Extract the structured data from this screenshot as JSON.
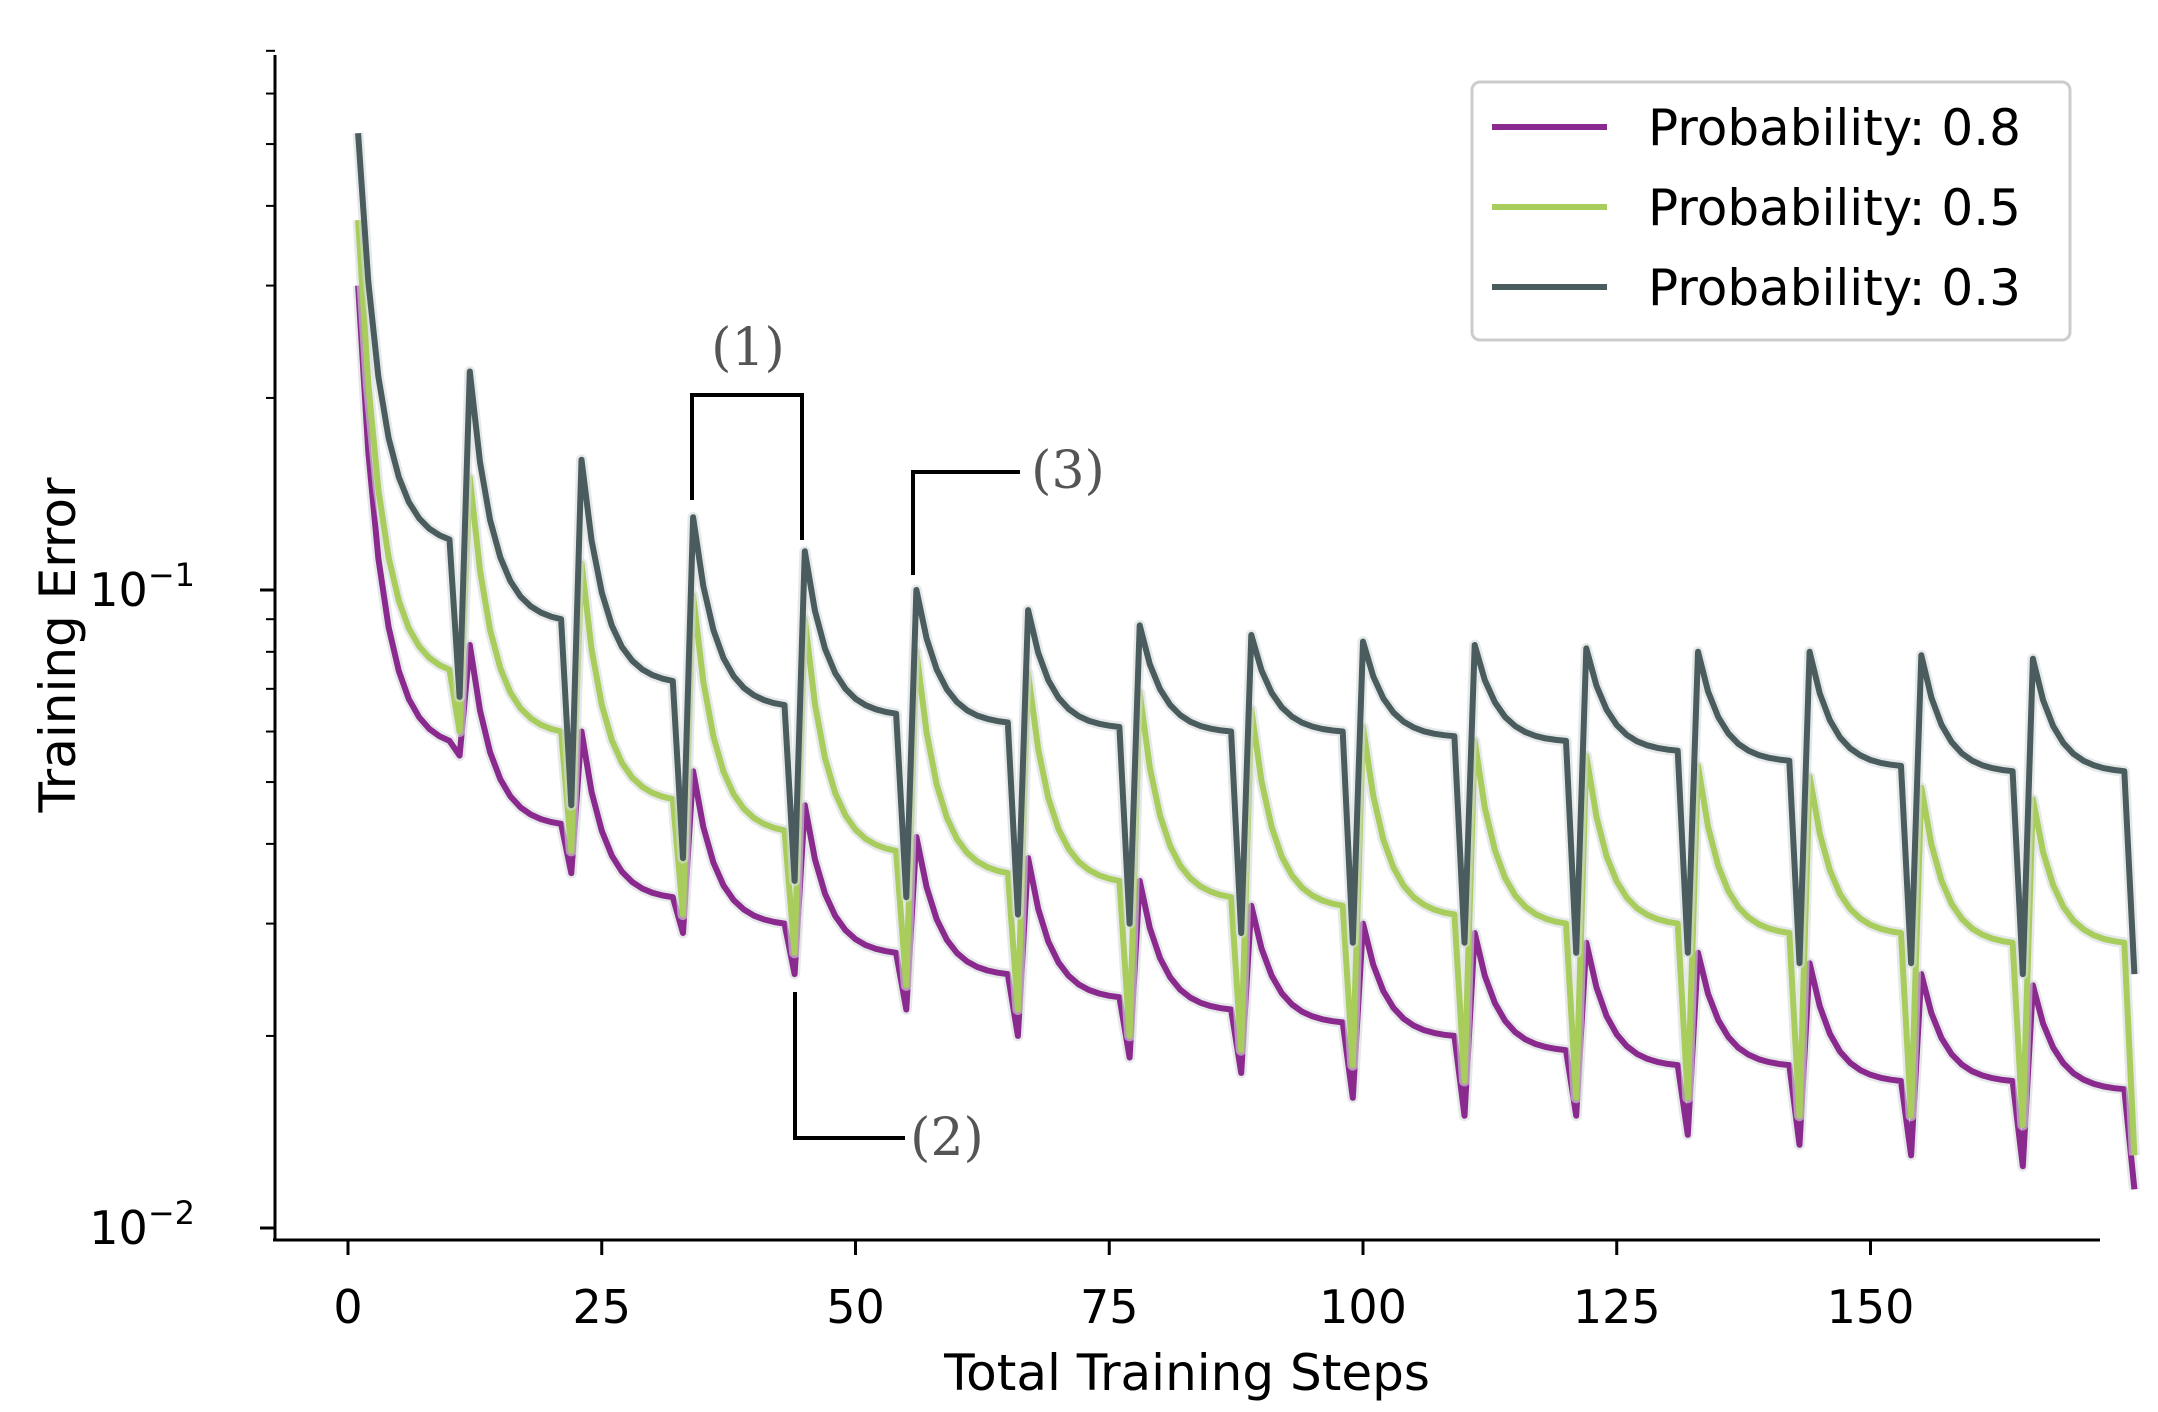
{
  "chart_data": {
    "type": "line",
    "title": "",
    "xlabel": "Total Training Steps",
    "ylabel": "Training Error",
    "yscale": "log",
    "xlim": [
      -3,
      173
    ],
    "ylim": [
      0.0095,
      0.75
    ],
    "xticks": [
      0,
      25,
      50,
      75,
      100,
      125,
      150
    ],
    "xtick_labels": [
      "0",
      "25",
      "50",
      "75",
      "100",
      "125",
      "150"
    ],
    "yticks": [
      0.1,
      0.01
    ],
    "ytick_labels": [
      {
        "base": "10",
        "exp": "−1"
      },
      {
        "base": "10",
        "exp": "−2"
      }
    ],
    "legend_position": "top-right",
    "series": [
      {
        "name": "Probability: 0.8",
        "color": "#8B2A8E",
        "start": 0.3,
        "pre_reset": 0.058,
        "reset_values": [
          0.082,
          0.06,
          0.052,
          0.046,
          0.041,
          0.038,
          0.035,
          0.032,
          0.03,
          0.029,
          0.028,
          0.027,
          0.026,
          0.025,
          0.024
        ],
        "end_values": [
          0.043,
          0.033,
          0.03,
          0.027,
          0.025,
          0.023,
          0.022,
          0.021,
          0.02,
          0.019,
          0.018,
          0.018,
          0.017,
          0.017,
          0.0165
        ],
        "dip_values": [
          0.055,
          0.036,
          0.029,
          0.025,
          0.022,
          0.02,
          0.0185,
          0.0175,
          0.016,
          0.015,
          0.015,
          0.014,
          0.0135,
          0.013,
          0.0125,
          0.0115
        ]
      },
      {
        "name": "Probability: 0.5",
        "color": "#A8CD5C",
        "start": 0.38,
        "pre_reset": 0.075,
        "reset_values": [
          0.15,
          0.11,
          0.098,
          0.09,
          0.08,
          0.074,
          0.069,
          0.065,
          0.061,
          0.058,
          0.055,
          0.053,
          0.051,
          0.049,
          0.047
        ],
        "end_values": [
          0.06,
          0.047,
          0.042,
          0.039,
          0.036,
          0.035,
          0.033,
          0.032,
          0.031,
          0.03,
          0.03,
          0.029,
          0.029,
          0.028,
          0.028
        ],
        "dip_values": [
          0.06,
          0.039,
          0.031,
          0.027,
          0.024,
          0.022,
          0.02,
          0.019,
          0.018,
          0.017,
          0.016,
          0.016,
          0.015,
          0.015,
          0.0145,
          0.013
        ]
      },
      {
        "name": "Probability: 0.3",
        "color": "#4A5C5D",
        "start": 0.52,
        "pre_reset": 0.12,
        "reset_values": [
          0.22,
          0.16,
          0.13,
          0.115,
          0.1,
          0.093,
          0.088,
          0.085,
          0.083,
          0.082,
          0.081,
          0.08,
          0.08,
          0.079,
          0.078
        ],
        "end_values": [
          0.09,
          0.072,
          0.066,
          0.064,
          0.062,
          0.061,
          0.06,
          0.06,
          0.059,
          0.058,
          0.056,
          0.054,
          0.053,
          0.052,
          0.052
        ],
        "dip_values": [
          0.068,
          0.046,
          0.038,
          0.035,
          0.033,
          0.031,
          0.03,
          0.029,
          0.028,
          0.028,
          0.027,
          0.027,
          0.026,
          0.026,
          0.025,
          0.025
        ]
      }
    ],
    "cycle_length": 11,
    "annotations": [
      {
        "label": "(1)",
        "description": "bracket between consecutive resets"
      },
      {
        "label": "(2)",
        "description": "bottom of dip"
      },
      {
        "label": "(3)",
        "description": "reset peak"
      }
    ]
  }
}
